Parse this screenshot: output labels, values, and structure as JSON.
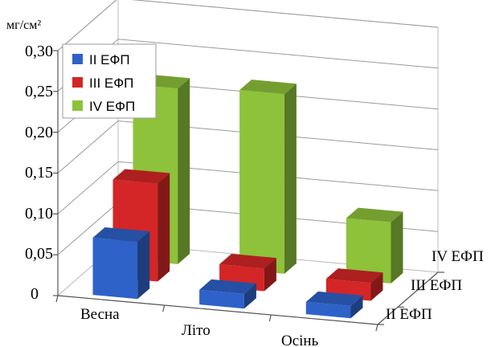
{
  "chart_data": {
    "type": "bar",
    "unit_label": "мг/см²",
    "categories": [
      "Весна",
      "Літо",
      "Осінь"
    ],
    "depth_labels": [
      "II ЕФП",
      "III ЕФП",
      "IV ЕФП"
    ],
    "yticks": [
      "0",
      "0,05",
      "0,10",
      "0,15",
      "0,20",
      "0,25",
      "0,30"
    ],
    "ylim": [
      0,
      0.3
    ],
    "grid": true,
    "legend_position": "top-left",
    "series": [
      {
        "name": "II ЕФП",
        "values": [
          0.07,
          0.018,
          0.015
        ],
        "color": "#2E62C8"
      },
      {
        "name": "III ЕФП",
        "values": [
          0.12,
          0.028,
          0.022
        ],
        "color": "#D42626"
      },
      {
        "name": "IV ЕФП",
        "values": [
          0.215,
          0.22,
          0.075
        ],
        "color": "#8DC23A"
      }
    ]
  }
}
